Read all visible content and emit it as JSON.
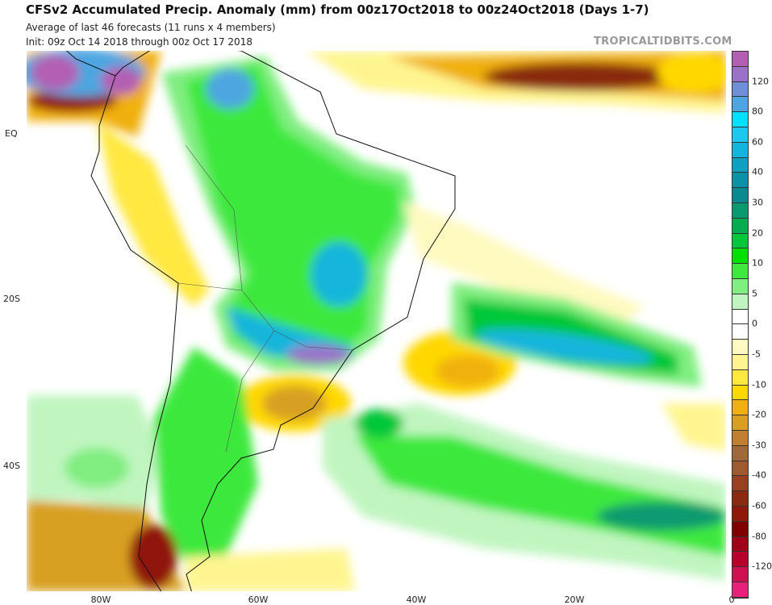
{
  "header": {
    "title": "CFSv2 Accumulated Precip. Anomaly (mm) from 00z17Oct2018 to 00z24Oct2018 (Days 1-7)",
    "subtitle1": "Average of last 46 forecasts (11 runs x 4 members)",
    "subtitle2": "Init: 09z Oct 14 2018 through 00z Oct 17 2018",
    "watermark": "TROPICALTIDBITS.COM"
  },
  "map": {
    "region": "South America",
    "lat_labels": [
      "EQ",
      "20S",
      "40S"
    ],
    "lon_labels": [
      "80W",
      "60W",
      "40W",
      "20W",
      "0"
    ]
  },
  "colorbar": {
    "colors": [
      "#b35fb3",
      "#9a73c8",
      "#6f8fd6",
      "#4ea6e0",
      "#00e0ff",
      "#1ac8f0",
      "#12b5db",
      "#0ea2c0",
      "#0a93a6",
      "#088a90",
      "#0a9a70",
      "#05ad52",
      "#00c83a",
      "#00e000",
      "#3ee83e",
      "#80ee80",
      "#c0f5c0",
      "#ffffff",
      "#ffffff",
      "#fffac0",
      "#fff590",
      "#ffe840",
      "#ffd800",
      "#f0b010",
      "#d8a020",
      "#c08030",
      "#a06838",
      "#a05a30",
      "#9a4020",
      "#8a2a10",
      "#901808",
      "#800000",
      "#a00018",
      "#b8002a",
      "#d01050",
      "#e8207a"
    ],
    "labels": [
      "120",
      "80",
      "60",
      "40",
      "30",
      "20",
      "10",
      "5",
      "0",
      "-5",
      "-10",
      "-20",
      "-30",
      "-40",
      "-60",
      "-80",
      "-120"
    ]
  }
}
